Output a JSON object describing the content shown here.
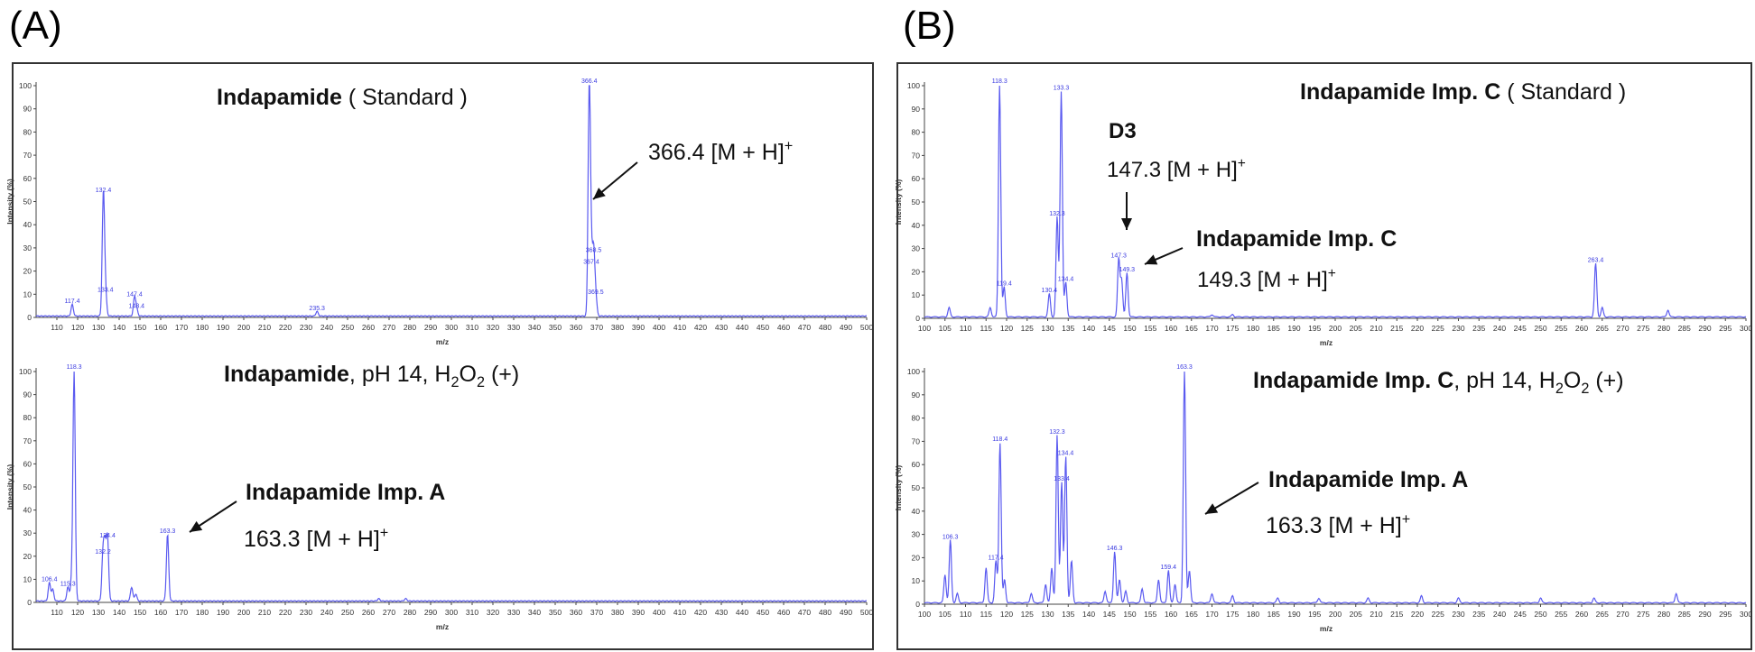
{
  "panels": [
    {
      "label": "(A)"
    },
    {
      "label": "(B)"
    }
  ],
  "axis_common": {
    "ylabel": "Intensity (%)",
    "xlabel": "m/z"
  },
  "colors": {
    "trace": "#5a5af0",
    "peak_label": "#3a3ae0",
    "axis": "#444444",
    "annotation": "#111111"
  },
  "chart_data": [
    {
      "type": "line",
      "id": "A1",
      "title_bold": "Indapamide",
      "title_rest": " ( Standard )",
      "xlabel": "m/z",
      "ylabel": "Intensity (%)",
      "xlim": [
        100,
        500
      ],
      "ylim": [
        0,
        100
      ],
      "xticks": [
        110,
        120,
        130,
        140,
        150,
        160,
        170,
        180,
        190,
        200,
        210,
        220,
        230,
        240,
        250,
        260,
        270,
        280,
        290,
        300,
        310,
        320,
        330,
        340,
        350,
        360,
        370,
        380,
        390,
        400,
        410,
        420,
        430,
        440,
        450,
        460,
        470,
        480,
        490,
        500
      ],
      "yticks": [
        0,
        10,
        20,
        30,
        40,
        50,
        60,
        70,
        80,
        90,
        100
      ],
      "peaks": [
        {
          "x": 117.4,
          "y": 5,
          "label": "117.4"
        },
        {
          "x": 132.4,
          "y": 53,
          "label": "132.4"
        },
        {
          "x": 133.4,
          "y": 10,
          "label": "133.4"
        },
        {
          "x": 147.4,
          "y": 8,
          "label": "147.4"
        },
        {
          "x": 148.4,
          "y": 3,
          "label": "148.4"
        },
        {
          "x": 235.3,
          "y": 2,
          "label": "235.3"
        },
        {
          "x": 366.4,
          "y": 100,
          "label": "366.4"
        },
        {
          "x": 367.4,
          "y": 22,
          "label": "367.4"
        },
        {
          "x": 368.5,
          "y": 27,
          "label": "368.5"
        },
        {
          "x": 369.5,
          "y": 9,
          "label": "369.5"
        }
      ],
      "annotations": [
        {
          "text": "366.4 [M + H]",
          "sup": "+"
        }
      ]
    },
    {
      "type": "line",
      "id": "A2",
      "title_bold": "Indapamide",
      "title_rest": ", pH 14, H",
      "title_sub": "2",
      "title_mid": "O",
      "title_sub2": "2",
      "title_end": " (+)",
      "xlabel": "m/z",
      "ylabel": "Intensity (%)",
      "xlim": [
        100,
        500
      ],
      "ylim": [
        0,
        100
      ],
      "xticks": [
        110,
        120,
        130,
        140,
        150,
        160,
        170,
        180,
        190,
        200,
        210,
        220,
        230,
        240,
        250,
        260,
        270,
        280,
        290,
        300,
        310,
        320,
        330,
        340,
        350,
        360,
        370,
        380,
        390,
        400,
        410,
        420,
        430,
        440,
        450,
        460,
        470,
        480,
        490,
        500
      ],
      "yticks": [
        0,
        10,
        20,
        30,
        40,
        50,
        60,
        70,
        80,
        90,
        100
      ],
      "peaks": [
        {
          "x": 106.4,
          "y": 8,
          "label": "106.4"
        },
        {
          "x": 108.0,
          "y": 5,
          "label": ""
        },
        {
          "x": 115.3,
          "y": 6,
          "label": "115.3"
        },
        {
          "x": 118.3,
          "y": 100,
          "label": "118.3"
        },
        {
          "x": 117.0,
          "y": 8,
          "label": ""
        },
        {
          "x": 132.2,
          "y": 20,
          "label": "132.2"
        },
        {
          "x": 134.4,
          "y": 27,
          "label": "134.4"
        },
        {
          "x": 133.2,
          "y": 22,
          "label": ""
        },
        {
          "x": 146.0,
          "y": 6,
          "label": ""
        },
        {
          "x": 148.0,
          "y": 3,
          "label": ""
        },
        {
          "x": 163.3,
          "y": 29,
          "label": "163.3"
        },
        {
          "x": 265.0,
          "y": 1,
          "label": ""
        },
        {
          "x": 278.0,
          "y": 1,
          "label": ""
        }
      ],
      "annotations": [
        {
          "text": "Indapamide Imp. A",
          "bold": true
        },
        {
          "text": "163.3 [M + H]",
          "sup": "+"
        }
      ]
    },
    {
      "type": "line",
      "id": "B1",
      "title_bold": "Indapamide Imp. C",
      "title_rest": " ( Standard )",
      "xlabel": "m/z",
      "ylabel": "Intensity (%)",
      "xlim": [
        100,
        300
      ],
      "ylim": [
        0,
        100
      ],
      "xticks": [
        100,
        105,
        110,
        115,
        120,
        125,
        130,
        135,
        140,
        145,
        150,
        155,
        160,
        165,
        170,
        175,
        180,
        185,
        190,
        195,
        200,
        205,
        210,
        215,
        220,
        225,
        230,
        235,
        240,
        245,
        250,
        255,
        260,
        265,
        270,
        275,
        280,
        285,
        290,
        295,
        300
      ],
      "yticks": [
        0,
        10,
        20,
        30,
        40,
        50,
        60,
        70,
        80,
        90,
        100
      ],
      "peaks": [
        {
          "x": 106.0,
          "y": 4,
          "label": ""
        },
        {
          "x": 116.0,
          "y": 4,
          "label": ""
        },
        {
          "x": 118.3,
          "y": 100,
          "label": "118.3"
        },
        {
          "x": 119.4,
          "y": 13,
          "label": "119.4"
        },
        {
          "x": 130.4,
          "y": 10,
          "label": "130.4"
        },
        {
          "x": 132.3,
          "y": 43,
          "label": "132.3"
        },
        {
          "x": 133.3,
          "y": 97,
          "label": "133.3"
        },
        {
          "x": 134.4,
          "y": 15,
          "label": "134.4"
        },
        {
          "x": 147.3,
          "y": 25,
          "label": "147.3"
        },
        {
          "x": 148.0,
          "y": 16,
          "label": ""
        },
        {
          "x": 149.3,
          "y": 19,
          "label": "149.3"
        },
        {
          "x": 170.0,
          "y": 1,
          "label": ""
        },
        {
          "x": 175.0,
          "y": 1,
          "label": ""
        },
        {
          "x": 263.4,
          "y": 23,
          "label": "263.4"
        },
        {
          "x": 265.0,
          "y": 4,
          "label": ""
        },
        {
          "x": 281.0,
          "y": 3,
          "label": ""
        }
      ],
      "annotations": [
        {
          "text": "D3",
          "bold": true
        },
        {
          "text": "147.3 [M + H]",
          "sup": "+"
        },
        {
          "text": "Indapamide Imp. C",
          "bold": true
        },
        {
          "text": "149.3 [M + H]",
          "sup": "+"
        }
      ]
    },
    {
      "type": "line",
      "id": "B2",
      "title_bold": "Indapamide Imp. C",
      "title_rest": ", pH 14, H",
      "title_sub": "2",
      "title_mid": "O",
      "title_sub2": "2",
      "title_end": " (+)",
      "xlabel": "m/z",
      "ylabel": "Intensity (%)",
      "xlim": [
        100,
        300
      ],
      "ylim": [
        0,
        100
      ],
      "xticks": [
        100,
        105,
        110,
        115,
        120,
        125,
        130,
        135,
        140,
        145,
        150,
        155,
        160,
        165,
        170,
        175,
        180,
        185,
        190,
        195,
        200,
        205,
        210,
        215,
        220,
        225,
        230,
        235,
        240,
        245,
        250,
        255,
        260,
        265,
        270,
        275,
        280,
        285,
        290,
        295,
        300
      ],
      "yticks": [
        0,
        10,
        20,
        30,
        40,
        50,
        60,
        70,
        80,
        90,
        100
      ],
      "peaks": [
        {
          "x": 105.0,
          "y": 12,
          "label": ""
        },
        {
          "x": 106.3,
          "y": 27,
          "label": "106.3"
        },
        {
          "x": 108.0,
          "y": 4,
          "label": ""
        },
        {
          "x": 115.0,
          "y": 15,
          "label": ""
        },
        {
          "x": 117.4,
          "y": 18,
          "label": "117.4"
        },
        {
          "x": 118.4,
          "y": 69,
          "label": "118.4"
        },
        {
          "x": 119.5,
          "y": 10,
          "label": ""
        },
        {
          "x": 126.0,
          "y": 4,
          "label": ""
        },
        {
          "x": 129.5,
          "y": 8,
          "label": ""
        },
        {
          "x": 131.0,
          "y": 15,
          "label": ""
        },
        {
          "x": 132.3,
          "y": 72,
          "label": "132.3"
        },
        {
          "x": 133.4,
          "y": 52,
          "label": "133.4"
        },
        {
          "x": 134.4,
          "y": 63,
          "label": "134.4"
        },
        {
          "x": 135.8,
          "y": 18,
          "label": ""
        },
        {
          "x": 144.0,
          "y": 5,
          "label": ""
        },
        {
          "x": 146.3,
          "y": 22,
          "label": "146.3"
        },
        {
          "x": 147.5,
          "y": 10,
          "label": ""
        },
        {
          "x": 149.0,
          "y": 5,
          "label": ""
        },
        {
          "x": 153.0,
          "y": 6,
          "label": ""
        },
        {
          "x": 157.0,
          "y": 10,
          "label": ""
        },
        {
          "x": 159.4,
          "y": 14,
          "label": "159.4"
        },
        {
          "x": 161.0,
          "y": 8,
          "label": ""
        },
        {
          "x": 163.3,
          "y": 100,
          "label": "163.3"
        },
        {
          "x": 164.5,
          "y": 14,
          "label": ""
        },
        {
          "x": 170.0,
          "y": 4,
          "label": ""
        },
        {
          "x": 175.0,
          "y": 3,
          "label": ""
        },
        {
          "x": 186.0,
          "y": 2,
          "label": ""
        },
        {
          "x": 196.0,
          "y": 2,
          "label": ""
        },
        {
          "x": 208.0,
          "y": 2,
          "label": ""
        },
        {
          "x": 221.0,
          "y": 3,
          "label": ""
        },
        {
          "x": 230.0,
          "y": 2,
          "label": ""
        },
        {
          "x": 250.0,
          "y": 2,
          "label": ""
        },
        {
          "x": 263.0,
          "y": 2,
          "label": ""
        },
        {
          "x": 283.0,
          "y": 4,
          "label": ""
        }
      ],
      "annotations": [
        {
          "text": "Indapamide Imp. A",
          "bold": true
        },
        {
          "text": "163.3 [M + H]",
          "sup": "+"
        }
      ]
    }
  ]
}
